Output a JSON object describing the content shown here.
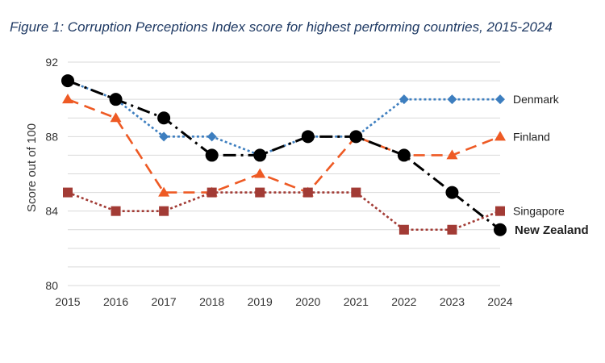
{
  "chart_data": {
    "type": "line",
    "title": "Figure 1: Corruption Perceptions Index score for highest performing countries, 2015-2024",
    "xlabel": "",
    "ylabel": "Score out of 100",
    "x": [
      "2015",
      "2016",
      "2017",
      "2018",
      "2019",
      "2020",
      "2021",
      "2022",
      "2023",
      "2024"
    ],
    "ylim": [
      80,
      92
    ],
    "yticks": [
      "80",
      "84",
      "88",
      "92"
    ],
    "grid": true,
    "legend": "series labels at line ends (right)",
    "series": [
      {
        "name": "Denmark",
        "values": [
          91,
          90,
          88,
          88,
          87,
          88,
          88,
          90,
          90,
          90
        ],
        "color": "#3d7ebf",
        "style": "dotted",
        "marker": "diamond",
        "bold": false
      },
      {
        "name": "Finland",
        "values": [
          90,
          89,
          85,
          85,
          86,
          85,
          88,
          87,
          87,
          88
        ],
        "color": "#ee5a24",
        "style": "dashed",
        "marker": "triangle",
        "bold": false
      },
      {
        "name": "Singapore",
        "values": [
          85,
          84,
          84,
          85,
          85,
          85,
          85,
          83,
          83,
          84
        ],
        "color": "#a23b35",
        "style": "dotted",
        "marker": "square",
        "bold": false
      },
      {
        "name": "New Zealand",
        "values": [
          91,
          90,
          89,
          87,
          87,
          88,
          88,
          87,
          85,
          83
        ],
        "color": "#000000",
        "style": "dashdot",
        "marker": "circle",
        "bold": true
      }
    ]
  }
}
